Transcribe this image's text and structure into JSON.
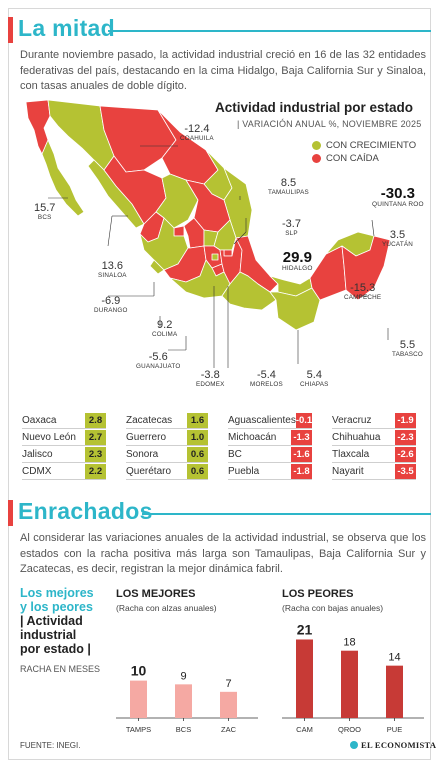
{
  "header": {
    "title": "La mitad",
    "intro": "Durante noviembre pasado, la actividad industrial creció en 16 de las 32 entidades federativas del país, destacando en la cima Hidalgo, Baja California Sur y Sinaloa, con tasas anuales de doble dígito."
  },
  "colors": {
    "accent": "#2db6c9",
    "positive": "#b5c233",
    "negative": "#e8423f"
  },
  "chart_data": [
    {
      "type": "map",
      "title": "Actividad industrial por estado",
      "subtitle": "| VARIACIÓN ANUAL %, NOVIEMBRE 2025",
      "legend": [
        {
          "label": "CON CRECIMIENTO",
          "color": "#b5c233"
        },
        {
          "label": "CON CAÍDA",
          "color": "#e8423f"
        }
      ],
      "labels": [
        {
          "state": "COAHUILA",
          "value": "-12.4"
        },
        {
          "state": "TAMAULIPAS",
          "value": "8.5"
        },
        {
          "state": "QUINTANA ROO",
          "value": "-30.3"
        },
        {
          "state": "BCS",
          "value": "15.7"
        },
        {
          "state": "SLP",
          "value": "-3.7"
        },
        {
          "state": "YUCATÁN",
          "value": "3.5"
        },
        {
          "state": "HIDALGO",
          "value": "29.9"
        },
        {
          "state": "SINALOA",
          "value": "13.6"
        },
        {
          "state": "CAMPECHE",
          "value": "-15.3"
        },
        {
          "state": "DURANGO",
          "value": "-6.9"
        },
        {
          "state": "COLIMA",
          "value": "9.2"
        },
        {
          "state": "TABASCO",
          "value": "5.5"
        },
        {
          "state": "GUANAJUATO",
          "value": "-5.6"
        },
        {
          "state": "EDOMEX",
          "value": "-3.8"
        },
        {
          "state": "MORELOS",
          "value": "-5.4"
        },
        {
          "state": "CHIAPAS",
          "value": "5.4"
        }
      ]
    },
    {
      "type": "table",
      "columns": [
        [
          {
            "name": "Oaxaca",
            "value": "2.8"
          },
          {
            "name": "Nuevo León",
            "value": "2.7"
          },
          {
            "name": "Jalisco",
            "value": "2.3"
          },
          {
            "name": "CDMX",
            "value": "2.2"
          }
        ],
        [
          {
            "name": "Zacatecas",
            "value": "1.6"
          },
          {
            "name": "Guerrero",
            "value": "1.0"
          },
          {
            "name": "Sonora",
            "value": "0.6"
          },
          {
            "name": "Querétaro",
            "value": "0.6"
          }
        ],
        [
          {
            "name": "Aguascalientes",
            "value": "-0.1"
          },
          {
            "name": "Michoacán",
            "value": "-1.3"
          },
          {
            "name": "BC",
            "value": "-1.6"
          },
          {
            "name": "Puebla",
            "value": "-1.8"
          }
        ],
        [
          {
            "name": "Veracruz",
            "value": "-1.9"
          },
          {
            "name": "Chihuahua",
            "value": "-2.3"
          },
          {
            "name": "Tlaxcala",
            "value": "-2.6"
          },
          {
            "name": "Nayarit",
            "value": "-3.5"
          }
        ]
      ]
    },
    {
      "type": "bar",
      "title": "LOS MEJORES",
      "subtitle": "(Racha con alzas anuales)",
      "categories": [
        "TAMPS",
        "BCS",
        "ZAC"
      ],
      "values": [
        10,
        9,
        7
      ],
      "color": "#f5a9a3"
    },
    {
      "type": "bar",
      "title": "LOS PEORES",
      "subtitle": "(Racha con bajas anuales)",
      "categories": [
        "CAM",
        "QROO",
        "PUE"
      ],
      "values": [
        21,
        18,
        14
      ],
      "color": "#c73a36"
    }
  ],
  "section2": {
    "title": "Enrachados",
    "intro": "Al considerar las variaciones anuales de la actividad industrial, se observa que los estados con la racha positiva más larga son Tamaulipas, Baja California Sur y Zacatecas, es decir, registran la mejor dinámica fabril.",
    "side_title_1": "Los mejores",
    "side_title_2": "y los peores",
    "side_title_3": "| Actividad",
    "side_title_4": "industrial",
    "side_title_5": "por estado |",
    "side_unit": "RACHA EN MESES"
  },
  "footer": {
    "source": "FUENTE: INEGI.",
    "brand": "EL ECONOMISTA"
  }
}
